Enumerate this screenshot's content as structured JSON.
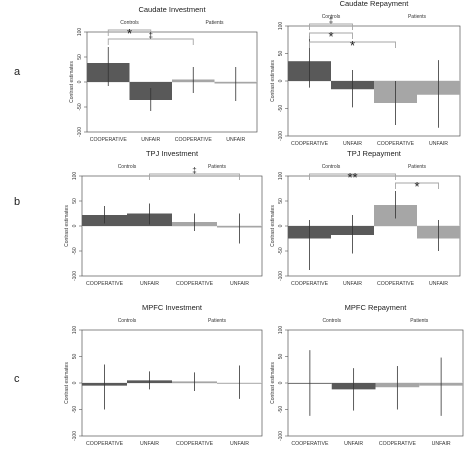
{
  "row_labels": [
    "a",
    "b",
    "c"
  ],
  "colors": {
    "controls_bar": "#595959",
    "patients_bar": "#a6a6a6",
    "error_bar": "#333333",
    "bracket": "#a6a6a6",
    "zero_line": "#cfcfcf"
  },
  "chart_data": [
    {
      "type": "bar",
      "title": "Caudate Investment",
      "ylabel": "Contrast estimates",
      "ylim": [
        -100,
        100
      ],
      "yticks": [
        -100,
        -50,
        0,
        50,
        100
      ],
      "group_labels": [
        "Controls",
        "Patients"
      ],
      "categories": [
        "COOPERATIVE",
        "UNFAIR",
        "COOPERATIVE",
        "UNFAIR"
      ],
      "values": [
        38,
        -36,
        5,
        -3
      ],
      "error_low": [
        -8,
        -58,
        -22,
        -38
      ],
      "error_high": [
        70,
        -12,
        30,
        30
      ],
      "annotations": [
        {
          "text": "*",
          "from": 0,
          "to": 1
        },
        {
          "text": "‡",
          "from": 0,
          "to": 2
        }
      ]
    },
    {
      "type": "bar",
      "title": "Caudate Repayment",
      "ylabel": "Contrast estimates",
      "ylim": [
        -100,
        100
      ],
      "yticks": [
        -100,
        -50,
        0,
        50,
        100
      ],
      "group_labels": [
        "Controls",
        "Patients"
      ],
      "categories": [
        "COOPERATIVE",
        "UNFAIR",
        "COOPERATIVE",
        "UNFAIR"
      ],
      "values": [
        36,
        -15,
        -40,
        -25
      ],
      "error_low": [
        -12,
        -48,
        -80,
        -85
      ],
      "error_high": [
        82,
        20,
        0,
        38
      ],
      "annotations": [
        {
          "text": "‡",
          "from": 0,
          "to": 1
        },
        {
          "text": "*",
          "from": 0,
          "to": 1
        },
        {
          "text": "*",
          "from": 0,
          "to": 2
        }
      ]
    },
    {
      "type": "bar",
      "title": "TPJ Investment",
      "ylabel": "Contrast estimates",
      "ylim": [
        -100,
        100
      ],
      "yticks": [
        -100,
        -50,
        0,
        50,
        100
      ],
      "group_labels": [
        "Controls",
        "Patients"
      ],
      "categories": [
        "COOPERATIVE",
        "UNFAIR",
        "COOPERATIVE",
        "UNFAIR"
      ],
      "values": [
        22,
        25,
        8,
        -3
      ],
      "error_low": [
        5,
        3,
        -10,
        -35
      ],
      "error_high": [
        40,
        45,
        25,
        25
      ],
      "annotations": [
        {
          "text": "‡",
          "from": 1,
          "to": 3
        }
      ]
    },
    {
      "type": "bar",
      "title": "TPJ Repayment",
      "ylabel": "Contrast estimates",
      "ylim": [
        -100,
        100
      ],
      "yticks": [
        -100,
        -50,
        0,
        50,
        100
      ],
      "group_labels": [
        "Controls",
        "Patients"
      ],
      "categories": [
        "COOPERATIVE",
        "UNFAIR",
        "COOPERATIVE",
        "UNFAIR"
      ],
      "values": [
        -25,
        -18,
        42,
        -25
      ],
      "error_low": [
        -88,
        -55,
        15,
        -50
      ],
      "error_high": [
        12,
        22,
        70,
        12
      ],
      "annotations": [
        {
          "text": "**",
          "from": 0,
          "to": 2
        },
        {
          "text": "*",
          "from": 2,
          "to": 3
        }
      ]
    },
    {
      "type": "bar",
      "title": "MPFC Investment",
      "ylabel": "Contrast estimates",
      "ylim": [
        -100,
        100
      ],
      "yticks": [
        -100,
        -50,
        0,
        50,
        100
      ],
      "group_labels": [
        "Controls",
        "Patients"
      ],
      "categories": [
        "COOPERATIVE",
        "UNFAIR",
        "COOPERATIVE",
        "UNFAIR"
      ],
      "values": [
        -5,
        5,
        3,
        0
      ],
      "error_low": [
        -50,
        -12,
        -15,
        -30
      ],
      "error_high": [
        35,
        22,
        20,
        33
      ],
      "annotations": []
    },
    {
      "type": "bar",
      "title": "MPFC Repayment",
      "ylabel": "Contrast estimates",
      "ylim": [
        -100,
        100
      ],
      "yticks": [
        -100,
        -50,
        0,
        50,
        100
      ],
      "group_labels": [
        "Controls",
        "Patients"
      ],
      "categories": [
        "COOPERATIVE",
        "UNFAIR",
        "COOPERATIVE",
        "UNFAIR"
      ],
      "values": [
        0,
        -12,
        -8,
        -5
      ],
      "error_low": [
        -62,
        -52,
        -50,
        -62
      ],
      "error_high": [
        62,
        28,
        32,
        48
      ],
      "annotations": []
    }
  ]
}
